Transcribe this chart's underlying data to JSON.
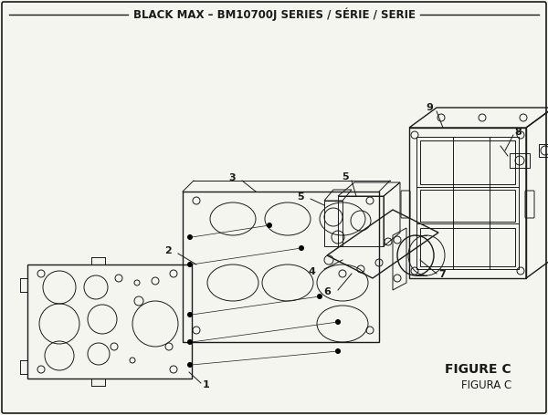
{
  "title": "BLACK MAX – BM10700J SERIES / SÉRIE / SERIE",
  "figure_label": "FIGURE C",
  "figura_label": "FIGURA C",
  "bg_color": "#f5f5f0",
  "line_color": "#1a1a1a",
  "figsize": [
    6.0,
    4.55
  ],
  "dpi": 100
}
